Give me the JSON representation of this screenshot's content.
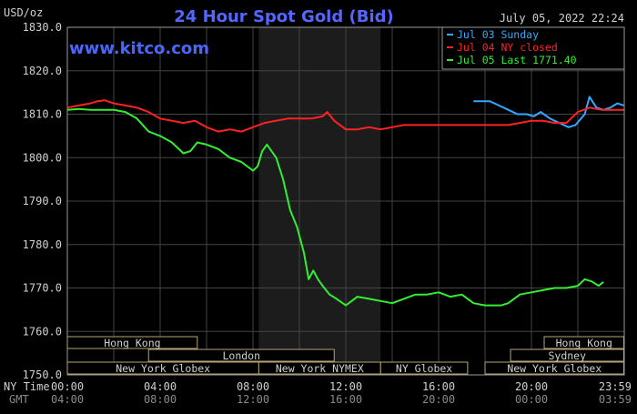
{
  "chart_data": {
    "type": "line",
    "title": "24 Hour Spot Gold (Bid)",
    "unit_label": "USD/oz",
    "watermark": "www.kitco.com",
    "timestamp": "July 05, 2022 22:24",
    "ylim": [
      1750,
      1830
    ],
    "y_ticks": [
      "1830.0",
      "1820.0",
      "1810.0",
      "1800.0",
      "1790.0",
      "1780.0",
      "1770.0",
      "1760.0",
      "1750.0"
    ],
    "x_range_hours": [
      0,
      24
    ],
    "x_ticks_ny": [
      "00:00",
      "04:00",
      "08:00",
      "12:00",
      "16:00",
      "20:00",
      "23:59"
    ],
    "x_ticks_gmt": [
      "04:00",
      "08:00",
      "12:00",
      "16:00",
      "20:00",
      "00:00",
      "03:59"
    ],
    "row_labels": {
      "ny": "NY Time",
      "gmt": "GMT"
    },
    "shaded_region_hours": [
      8.25,
      13.5
    ],
    "grid": true,
    "legend_position": "top-right",
    "series": [
      {
        "name": "Jul 03 Sunday",
        "color": "#33aaff",
        "x": [
          17.5,
          18.2,
          18.6,
          19.0,
          19.4,
          19.8,
          20.1,
          20.4,
          20.8,
          21.2,
          21.6,
          21.9,
          22.3,
          22.5,
          22.8,
          23.1,
          23.4,
          23.7,
          23.98
        ],
        "y": [
          1813.0,
          1813.0,
          1812.0,
          1811.0,
          1810.0,
          1810.0,
          1809.5,
          1810.5,
          1809.0,
          1808.0,
          1807.0,
          1807.5,
          1810.0,
          1814.0,
          1811.5,
          1811.0,
          1811.5,
          1812.5,
          1812.0
        ]
      },
      {
        "name": "Jul 04 NY closed",
        "color": "#ff2222",
        "x": [
          0.0,
          0.5,
          1.0,
          1.3,
          1.6,
          2.0,
          2.5,
          3.0,
          3.5,
          4.0,
          4.5,
          5.0,
          5.5,
          6.0,
          6.5,
          7.0,
          7.5,
          8.0,
          8.5,
          9.0,
          9.5,
          10.0,
          10.5,
          11.0,
          11.2,
          11.5,
          12.0,
          12.5,
          13.0,
          13.5,
          14.0,
          14.5,
          15.0,
          16.0,
          17.0,
          18.0,
          19.0,
          19.5,
          20.0,
          20.5,
          21.0,
          21.5,
          22.0,
          22.5,
          23.0,
          23.5,
          23.98
        ],
        "y": [
          1811.5,
          1812.0,
          1812.5,
          1813.0,
          1813.2,
          1812.5,
          1812.0,
          1811.5,
          1810.5,
          1809.0,
          1808.5,
          1808.0,
          1808.5,
          1807.0,
          1806.0,
          1806.5,
          1806.0,
          1807.0,
          1808.0,
          1808.5,
          1809.0,
          1809.0,
          1809.0,
          1809.5,
          1810.5,
          1808.5,
          1806.5,
          1806.5,
          1807.0,
          1806.5,
          1807.0,
          1807.5,
          1807.5,
          1807.5,
          1807.5,
          1807.5,
          1807.5,
          1808.0,
          1808.5,
          1808.5,
          1808.0,
          1808.0,
          1810.5,
          1811.5,
          1811.0,
          1811.0,
          1811.0
        ]
      },
      {
        "name": "Jul 05 Last 1771.40",
        "color": "#33ee33",
        "x": [
          0.0,
          0.5,
          1.0,
          1.5,
          2.0,
          2.5,
          3.0,
          3.5,
          4.0,
          4.5,
          5.0,
          5.3,
          5.6,
          6.0,
          6.5,
          7.0,
          7.5,
          8.0,
          8.2,
          8.4,
          8.6,
          8.8,
          9.0,
          9.3,
          9.6,
          9.9,
          10.2,
          10.4,
          10.6,
          10.8,
          11.0,
          11.3,
          11.6,
          12.0,
          12.5,
          13.0,
          13.5,
          14.0,
          14.5,
          15.0,
          15.5,
          16.0,
          16.5,
          17.0,
          17.5,
          18.0,
          18.4,
          18.7,
          19.0,
          19.5,
          20.0,
          20.5,
          21.0,
          21.5,
          22.0,
          22.3,
          22.6,
          22.9,
          23.1
        ],
        "y": [
          1811.0,
          1811.2,
          1811.0,
          1811.0,
          1811.0,
          1810.5,
          1809.0,
          1806.0,
          1805.0,
          1803.5,
          1801.0,
          1801.5,
          1803.5,
          1803.0,
          1802.0,
          1800.0,
          1799.0,
          1797.0,
          1798.0,
          1801.5,
          1803.0,
          1801.5,
          1800.0,
          1795.0,
          1788.0,
          1784.0,
          1778.0,
          1772.0,
          1774.0,
          1772.0,
          1770.5,
          1768.5,
          1767.5,
          1766.0,
          1768.0,
          1767.5,
          1767.0,
          1766.5,
          1767.5,
          1768.5,
          1768.5,
          1769.0,
          1768.0,
          1768.5,
          1766.5,
          1766.0,
          1766.0,
          1766.0,
          1766.5,
          1768.5,
          1769.0,
          1769.5,
          1770.0,
          1770.0,
          1770.5,
          1772.0,
          1771.5,
          1770.5,
          1771.4
        ]
      }
    ],
    "sessions": [
      {
        "label": "Hong Kong",
        "row": 0,
        "start": 0.0,
        "end": 5.6
      },
      {
        "label": "Hong Kong",
        "row": 0,
        "start": 20.55,
        "end": 23.98
      },
      {
        "label": "London",
        "row": 1,
        "start": 3.5,
        "end": 11.5
      },
      {
        "label": "Sydney",
        "row": 1,
        "start": 19.1,
        "end": 23.98
      },
      {
        "label": "New York Globex",
        "row": 2,
        "start": 0.0,
        "end": 8.25
      },
      {
        "label": "New York NYMEX",
        "row": 2,
        "start": 8.25,
        "end": 13.5
      },
      {
        "label": "NY Globex",
        "row": 2,
        "start": 13.5,
        "end": 17.25
      },
      {
        "label": "New York Globex",
        "row": 2,
        "start": 18.0,
        "end": 23.98
      }
    ]
  }
}
